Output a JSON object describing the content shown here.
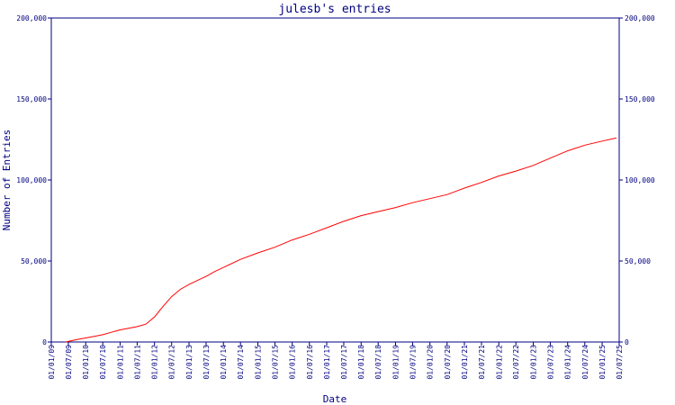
{
  "chart_data": {
    "type": "line",
    "title": "julesb's entries",
    "xlabel": "Date",
    "ylabel": "Number of Entries",
    "ylim": [
      0,
      200000
    ],
    "yticks": [
      {
        "value": 0,
        "label": "0"
      },
      {
        "value": 50000,
        "label": "50,000"
      },
      {
        "value": 100000,
        "label": "100,000"
      },
      {
        "value": 150000,
        "label": "150,000"
      },
      {
        "value": 200000,
        "label": "200,000"
      }
    ],
    "xticks": [
      "01/01/09",
      "01/07/09",
      "01/01/10",
      "01/07/10",
      "01/01/11",
      "01/07/11",
      "01/01/12",
      "01/07/12",
      "01/01/13",
      "01/07/13",
      "01/01/14",
      "01/07/14",
      "01/01/15",
      "01/07/15",
      "01/01/16",
      "01/07/16",
      "01/01/17",
      "01/07/17",
      "01/01/18",
      "01/07/18",
      "01/01/19",
      "01/07/19",
      "01/01/20",
      "01/07/20",
      "01/01/21",
      "01/07/21",
      "01/01/22",
      "01/07/22",
      "01/01/23",
      "01/07/23",
      "01/01/24",
      "01/07/24",
      "01/01/25",
      "01/07/25"
    ],
    "grid": false,
    "colors": {
      "axis": "#000080",
      "line": "#ff0000",
      "text": "#000080"
    },
    "series": [
      {
        "x": [
          "2009-06-01",
          "2009-10-01",
          "2010-01-01",
          "2010-04-01",
          "2010-07-01",
          "2010-10-01",
          "2011-01-01",
          "2011-04-01",
          "2011-07-01",
          "2011-10-01",
          "2012-01-01",
          "2012-04-01",
          "2012-07-01",
          "2012-10-01",
          "2013-01-01",
          "2013-04-01",
          "2013-07-01",
          "2013-10-01",
          "2014-01-01",
          "2014-07-01",
          "2015-01-01",
          "2015-07-01",
          "2016-01-01",
          "2016-07-01",
          "2017-01-01",
          "2017-07-01",
          "2018-01-01",
          "2018-07-01",
          "2019-01-01",
          "2019-07-01",
          "2020-01-01",
          "2020-07-01",
          "2021-01-01",
          "2021-07-01",
          "2022-01-01",
          "2022-07-01",
          "2023-01-01",
          "2023-07-01",
          "2024-01-01",
          "2024-07-01",
          "2025-01-01",
          "2025-06-01"
        ],
        "values": [
          0,
          1500,
          2500,
          3500,
          4500,
          6000,
          7500,
          8500,
          9500,
          11000,
          15500,
          22000,
          28000,
          32500,
          35500,
          38000,
          40500,
          43500,
          46000,
          51000,
          55000,
          58500,
          63000,
          66500,
          70500,
          74500,
          78000,
          80500,
          83000,
          86000,
          88500,
          91000,
          95000,
          98500,
          102500,
          105500,
          109000,
          113500,
          118000,
          121500,
          124000,
          126000
        ]
      }
    ]
  }
}
